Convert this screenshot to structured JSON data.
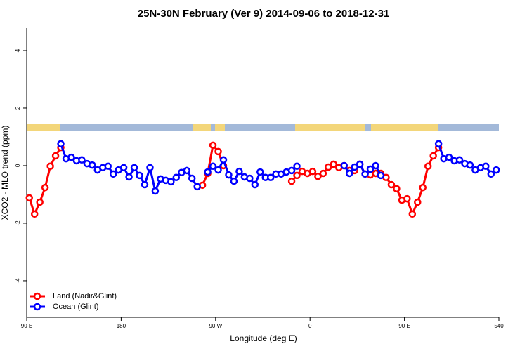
{
  "chart_data": {
    "type": "line",
    "title": "25N-30N February (Ver 9)   2014-09-06 to 2018-12-31",
    "x_label": "Longitude (deg E)",
    "y_label": "XCO2 - MLO trend (ppm)",
    "x": [
      92.5,
      97.5,
      102.5,
      107.5,
      112.5,
      117.5,
      122.5,
      127.5,
      132.5,
      137.5,
      142.5,
      147.5,
      152.5,
      157.5,
      162.5,
      167.5,
      172.5,
      177.5,
      182.5,
      187.5,
      192.5,
      197.5,
      202.5,
      207.5,
      212.5,
      217.5,
      222.5,
      227.5,
      232.5,
      237.5,
      242.5,
      247.5,
      252.5,
      257.5,
      262.5,
      267.5,
      272.5,
      277.5,
      282.5,
      287.5,
      292.5,
      297.5,
      302.5,
      307.5,
      312.5,
      317.5,
      322.5,
      327.5,
      332.5,
      337.5,
      342.5,
      347.5,
      352.5,
      357.5,
      362.5,
      367.5,
      372.5,
      377.5,
      382.5,
      387.5,
      392.5,
      397.5,
      402.5,
      407.5,
      412.5,
      417.5,
      422.5,
      427.5,
      432.5,
      437.5,
      442.5,
      447.5,
      452.5,
      457.5,
      462.5,
      467.5,
      472.5,
      477.5,
      482.5,
      487.5,
      492.5,
      497.5,
      502.5,
      507.5,
      512.5,
      517.5,
      522.5,
      527.5,
      532.5,
      537.5
    ],
    "series": [
      {
        "name": "Land (Nadir&Glint)",
        "color": "#ff0000",
        "values": [
          -1.12,
          -1.68,
          -1.27,
          -0.76,
          -0.02,
          0.34,
          0.63,
          null,
          null,
          null,
          null,
          null,
          null,
          null,
          null,
          null,
          null,
          null,
          null,
          null,
          null,
          null,
          null,
          null,
          null,
          null,
          null,
          null,
          null,
          null,
          null,
          null,
          null,
          -0.68,
          -0.27,
          0.71,
          0.49,
          0.0,
          null,
          null,
          null,
          null,
          null,
          null,
          null,
          null,
          null,
          null,
          null,
          null,
          -0.54,
          -0.34,
          -0.2,
          -0.27,
          -0.2,
          -0.37,
          -0.27,
          -0.05,
          0.05,
          -0.07,
          0.0,
          -0.17,
          -0.17,
          0.05,
          -0.29,
          -0.32,
          -0.27,
          -0.27,
          -0.41,
          -0.66,
          -0.8,
          -1.2,
          -1.15,
          -1.68,
          -1.27,
          -0.76,
          -0.02,
          0.34,
          0.63,
          null,
          null,
          null,
          null,
          null,
          null,
          null,
          null,
          null,
          null,
          null
        ]
      },
      {
        "name": "Ocean (Glint)",
        "color": "#0000ff",
        "values": [
          null,
          null,
          null,
          null,
          null,
          null,
          0.76,
          0.24,
          0.29,
          0.17,
          0.2,
          0.07,
          0.02,
          -0.15,
          -0.07,
          -0.02,
          -0.29,
          -0.15,
          -0.07,
          -0.39,
          -0.07,
          -0.34,
          -0.66,
          -0.07,
          -0.88,
          -0.46,
          -0.51,
          -0.56,
          -0.41,
          -0.24,
          -0.17,
          -0.44,
          -0.73,
          null,
          -0.22,
          -0.02,
          -0.15,
          0.2,
          -0.32,
          -0.54,
          -0.2,
          -0.39,
          -0.44,
          -0.66,
          -0.22,
          -0.41,
          -0.41,
          -0.29,
          -0.29,
          -0.22,
          -0.17,
          -0.02,
          null,
          null,
          null,
          null,
          null,
          null,
          null,
          null,
          0.0,
          -0.27,
          -0.05,
          0.05,
          -0.29,
          -0.12,
          0.0,
          -0.34,
          null,
          null,
          null,
          null,
          null,
          null,
          null,
          null,
          null,
          null,
          0.76,
          0.24,
          0.29,
          0.17,
          0.2,
          0.07,
          0.02,
          -0.15,
          -0.07,
          -0.02,
          -0.29,
          -0.15
        ]
      }
    ],
    "xlim": [
      90,
      540
    ],
    "xticks": [
      {
        "value": 90,
        "label": "90 E"
      },
      180,
      {
        "value": 270,
        "label": "90 W"
      },
      {
        "value": 360,
        "label": "0"
      },
      {
        "value": 450,
        "label": "90 E"
      },
      540
    ],
    "ylim": [
      -5.27,
      4.78
    ],
    "yticks": [
      -4,
      -2,
      0,
      2,
      4
    ],
    "legend": "bottom-left"
  }
}
